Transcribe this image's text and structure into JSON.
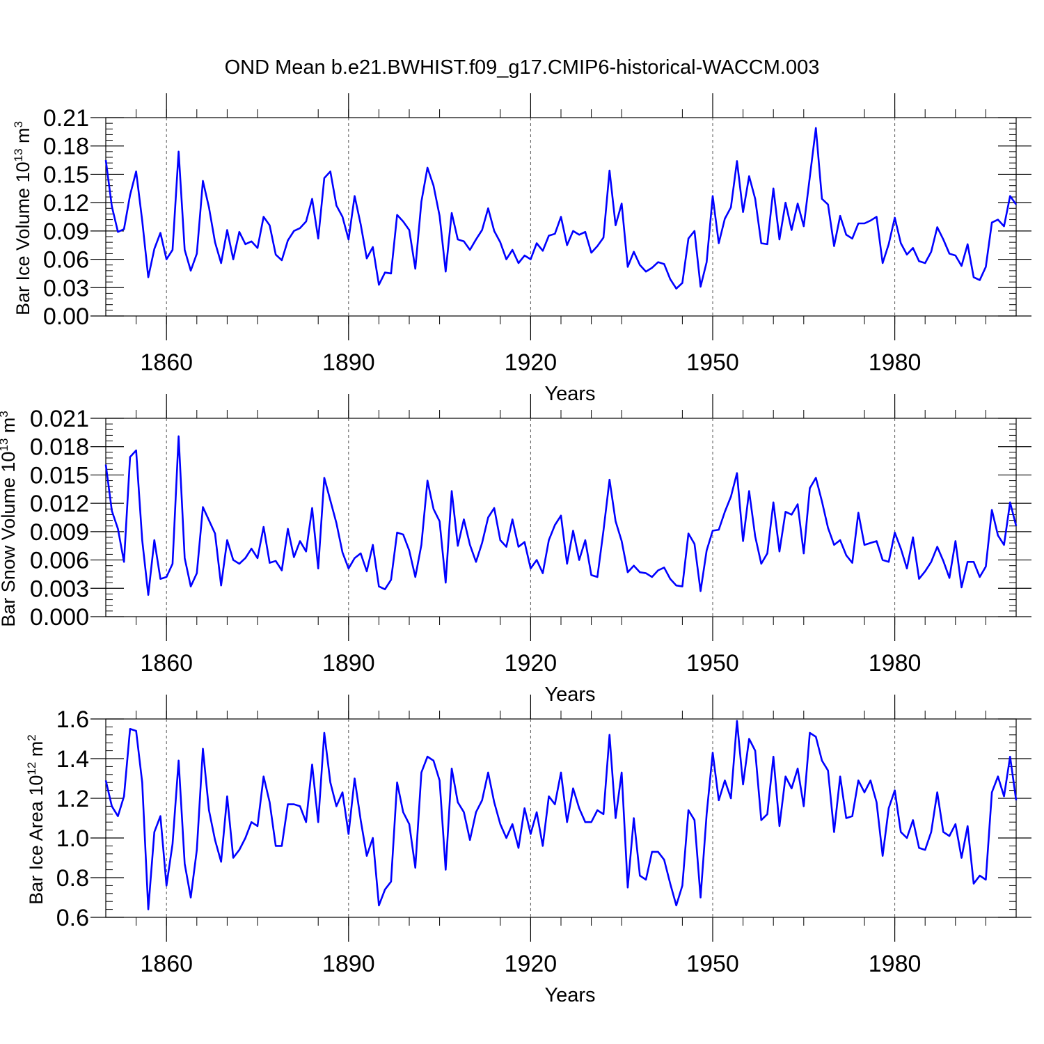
{
  "title": "OND Mean b.e21.BWHIST.f09_g17.CMIP6-historical-WACCM.003",
  "line_color": "#0000ff",
  "chart_data": [
    {
      "type": "line",
      "ylabel": "Bar Ice Volume 10",
      "ylabel_exp": "13",
      "ylabel_unit": " m",
      "ylabel_unit_exp": "3",
      "xlabel": "Years",
      "xlim": [
        1850,
        2000
      ],
      "ylim": [
        0.0,
        0.21
      ],
      "yticks": [
        "0.00",
        "0.03",
        "0.06",
        "0.09",
        "0.12",
        "0.15",
        "0.18",
        "0.21"
      ],
      "xticks": [
        "1860",
        "1890",
        "1920",
        "1950",
        "1980"
      ],
      "grid": "vertical dashed at major x ticks",
      "x_start": 1850,
      "values": [
        0.165,
        0.116,
        0.089,
        0.092,
        0.128,
        0.153,
        0.101,
        0.041,
        0.071,
        0.088,
        0.06,
        0.07,
        0.174,
        0.07,
        0.048,
        0.066,
        0.143,
        0.115,
        0.078,
        0.056,
        0.091,
        0.06,
        0.089,
        0.076,
        0.079,
        0.072,
        0.105,
        0.096,
        0.065,
        0.059,
        0.08,
        0.09,
        0.093,
        0.1,
        0.124,
        0.082,
        0.146,
        0.153,
        0.117,
        0.105,
        0.081,
        0.127,
        0.097,
        0.061,
        0.073,
        0.033,
        0.046,
        0.045,
        0.107,
        0.1,
        0.091,
        0.05,
        0.121,
        0.157,
        0.138,
        0.106,
        0.047,
        0.109,
        0.081,
        0.079,
        0.07,
        0.081,
        0.091,
        0.114,
        0.09,
        0.078,
        0.06,
        0.07,
        0.056,
        0.064,
        0.06,
        0.077,
        0.069,
        0.085,
        0.087,
        0.105,
        0.075,
        0.09,
        0.086,
        0.089,
        0.067,
        0.074,
        0.083,
        0.154,
        0.096,
        0.119,
        0.052,
        0.068,
        0.054,
        0.047,
        0.051,
        0.057,
        0.055,
        0.039,
        0.029,
        0.035,
        0.082,
        0.09,
        0.031,
        0.057,
        0.127,
        0.077,
        0.103,
        0.115,
        0.164,
        0.11,
        0.148,
        0.124,
        0.077,
        0.076,
        0.135,
        0.081,
        0.12,
        0.091,
        0.119,
        0.095,
        0.147,
        0.199,
        0.124,
        0.118,
        0.074,
        0.106,
        0.086,
        0.082,
        0.098,
        0.098,
        0.101,
        0.105,
        0.056,
        0.076,
        0.104,
        0.077,
        0.065,
        0.072,
        0.058,
        0.056,
        0.068,
        0.094,
        0.081,
        0.066,
        0.064,
        0.053,
        0.076,
        0.041,
        0.038,
        0.052,
        0.099,
        0.102,
        0.095,
        0.127,
        0.118
      ]
    },
    {
      "type": "line",
      "ylabel": "Bar Snow Volume 10",
      "ylabel_exp": "13",
      "ylabel_unit": " m",
      "ylabel_unit_exp": "3",
      "xlabel": "Years",
      "xlim": [
        1850,
        2000
      ],
      "ylim": [
        0.0,
        0.021
      ],
      "yticks": [
        "0.000",
        "0.003",
        "0.006",
        "0.009",
        "0.012",
        "0.015",
        "0.018",
        "0.021"
      ],
      "xticks": [
        "1860",
        "1890",
        "1920",
        "1950",
        "1980"
      ],
      "grid": "vertical dashed at major x ticks",
      "x_start": 1850,
      "values": [
        0.0161,
        0.0112,
        0.0093,
        0.0058,
        0.0169,
        0.0176,
        0.0081,
        0.0023,
        0.0081,
        0.004,
        0.0042,
        0.0056,
        0.0191,
        0.0062,
        0.0032,
        0.0046,
        0.0116,
        0.0102,
        0.0088,
        0.0033,
        0.0081,
        0.006,
        0.0056,
        0.0062,
        0.0072,
        0.0062,
        0.0095,
        0.0057,
        0.0059,
        0.0049,
        0.0093,
        0.0063,
        0.008,
        0.0069,
        0.0115,
        0.0051,
        0.0147,
        0.0123,
        0.0099,
        0.0068,
        0.0051,
        0.0062,
        0.0067,
        0.0048,
        0.0076,
        0.0032,
        0.0029,
        0.0039,
        0.0089,
        0.0087,
        0.007,
        0.0042,
        0.0076,
        0.0144,
        0.0114,
        0.0101,
        0.0036,
        0.0133,
        0.0075,
        0.0103,
        0.0076,
        0.0058,
        0.0078,
        0.0105,
        0.0115,
        0.0081,
        0.0074,
        0.0103,
        0.0074,
        0.0079,
        0.0051,
        0.006,
        0.0046,
        0.0081,
        0.0097,
        0.0107,
        0.0056,
        0.0091,
        0.006,
        0.0081,
        0.0044,
        0.0042,
        0.0091,
        0.0145,
        0.0101,
        0.008,
        0.0047,
        0.0054,
        0.0047,
        0.0046,
        0.0042,
        0.0049,
        0.0052,
        0.004,
        0.0033,
        0.0032,
        0.0088,
        0.0077,
        0.0027,
        0.007,
        0.0091,
        0.0092,
        0.0111,
        0.0127,
        0.0152,
        0.008,
        0.0133,
        0.0085,
        0.0056,
        0.0067,
        0.0121,
        0.0069,
        0.0111,
        0.0108,
        0.0119,
        0.0067,
        0.0136,
        0.0147,
        0.0122,
        0.0094,
        0.0076,
        0.0081,
        0.0065,
        0.0057,
        0.011,
        0.0076,
        0.0078,
        0.008,
        0.006,
        0.0058,
        0.0089,
        0.0072,
        0.0051,
        0.0084,
        0.004,
        0.0048,
        0.0058,
        0.0074,
        0.0059,
        0.0041,
        0.008,
        0.0031,
        0.0058,
        0.0058,
        0.0042,
        0.0053,
        0.0113,
        0.0086,
        0.0076,
        0.0121,
        0.0096
      ]
    },
    {
      "type": "line",
      "ylabel": "Bar Ice Area 10",
      "ylabel_exp": "12",
      "ylabel_unit": " m",
      "ylabel_unit_exp": "2",
      "xlabel": "Years",
      "xlim": [
        1850,
        2000
      ],
      "ylim": [
        0.6,
        1.6
      ],
      "yticks": [
        "0.6",
        "0.8",
        "1.0",
        "1.2",
        "1.4",
        "1.6"
      ],
      "xticks": [
        "1860",
        "1890",
        "1920",
        "1950",
        "1980"
      ],
      "grid": "vertical dashed at major x ticks",
      "x_start": 1850,
      "values": [
        1.29,
        1.16,
        1.11,
        1.21,
        1.55,
        1.54,
        1.28,
        0.64,
        1.03,
        1.11,
        0.76,
        0.97,
        1.39,
        0.87,
        0.7,
        0.94,
        1.45,
        1.14,
        0.99,
        0.88,
        1.21,
        0.9,
        0.94,
        1.0,
        1.08,
        1.06,
        1.31,
        1.18,
        0.96,
        0.96,
        1.17,
        1.17,
        1.16,
        1.08,
        1.37,
        1.08,
        1.53,
        1.28,
        1.16,
        1.23,
        1.02,
        1.3,
        1.09,
        0.91,
        1.0,
        0.66,
        0.74,
        0.78,
        1.28,
        1.13,
        1.07,
        0.85,
        1.33,
        1.41,
        1.39,
        1.29,
        0.84,
        1.35,
        1.18,
        1.13,
        0.99,
        1.13,
        1.19,
        1.33,
        1.18,
        1.07,
        1.0,
        1.07,
        0.95,
        1.15,
        1.02,
        1.13,
        0.96,
        1.21,
        1.17,
        1.33,
        1.08,
        1.25,
        1.15,
        1.08,
        1.08,
        1.14,
        1.12,
        1.52,
        1.1,
        1.33,
        0.75,
        1.1,
        0.81,
        0.79,
        0.93,
        0.93,
        0.89,
        0.77,
        0.66,
        0.76,
        1.14,
        1.09,
        0.7,
        1.12,
        1.43,
        1.19,
        1.29,
        1.2,
        1.59,
        1.27,
        1.5,
        1.44,
        1.09,
        1.12,
        1.41,
        1.06,
        1.31,
        1.25,
        1.35,
        1.16,
        1.53,
        1.51,
        1.39,
        1.34,
        1.03,
        1.31,
        1.1,
        1.11,
        1.29,
        1.23,
        1.29,
        1.18,
        0.91,
        1.15,
        1.24,
        1.03,
        1.0,
        1.09,
        0.95,
        0.94,
        1.03,
        1.23,
        1.03,
        1.01,
        1.07,
        0.9,
        1.06,
        0.77,
        0.81,
        0.79,
        1.23,
        1.31,
        1.21,
        1.41,
        1.19
      ]
    }
  ]
}
